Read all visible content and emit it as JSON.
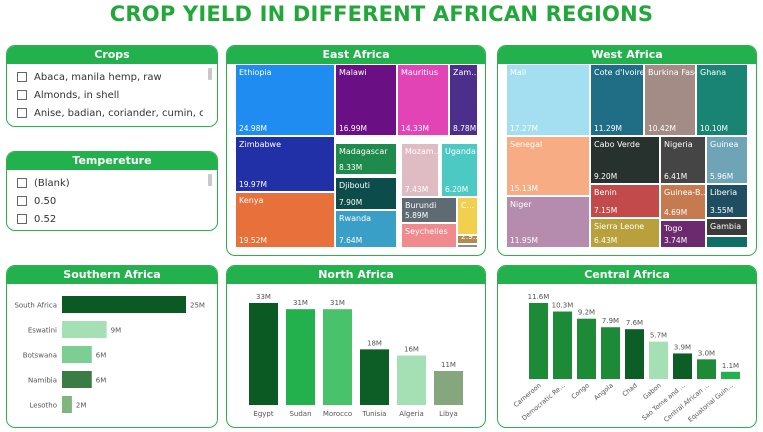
{
  "page": {
    "title": "CROP YIELD IN DIFFERENT AFRICAN REGIONS"
  },
  "colors": {
    "accent": "#22b14c",
    "title": "#22a83a"
  },
  "crops_slicer": {
    "title": "Crops",
    "items": [
      "Abaca, manila hemp, raw",
      "Almonds, in shell",
      "Anise, badian, coriander, cumin, caraway,..."
    ]
  },
  "temp_slicer": {
    "title": "Tempereture",
    "items": [
      "(Blank)",
      "0.50",
      "0.52"
    ]
  },
  "east_africa": {
    "title": "East Africa",
    "cells": [
      {
        "name": "Ethiopia",
        "value": "24.98M",
        "color": "#1f8cf2"
      },
      {
        "name": "Malawi",
        "value": "16.99M",
        "color": "#6b0f84"
      },
      {
        "name": "Mauritius",
        "value": "14.33M",
        "color": "#e244b5"
      },
      {
        "name": "Zam...",
        "value": "8.78M",
        "color": "#4b2f8a"
      },
      {
        "name": "Zimbabwe",
        "value": "19.97M",
        "color": "#2230a8"
      },
      {
        "name": "Madagascar",
        "value": "8.33M",
        "color": "#1e8a4c"
      },
      {
        "name": "Mozam...",
        "value": "7.43M",
        "color": "#dfbcc4"
      },
      {
        "name": "Uganda",
        "value": "6.20M",
        "color": "#4dc9c3"
      },
      {
        "name": "Kenya",
        "value": "19.52M",
        "color": "#e8703a"
      },
      {
        "name": "Djibouti",
        "value": "7.90M",
        "color": "#0c4c4a"
      },
      {
        "name": "Burundi",
        "value": "5.89M",
        "color": "#5f6b73"
      },
      {
        "name": "C...",
        "value": "",
        "color": "#f2cf4e"
      },
      {
        "name": "Rwanda",
        "value": "7.64M",
        "color": "#3a9fc7"
      },
      {
        "name": "Seychelles",
        "value": "",
        "color": "#f08a8c"
      },
      {
        "name": "",
        "value": "2.9...",
        "color": "#b08d4e"
      },
      {
        "name": "",
        "value": "",
        "color": "#8d8d8d"
      }
    ]
  },
  "west_africa": {
    "title": "West Africa",
    "cells": [
      {
        "name": "Mali",
        "value": "17.27M",
        "color": "#a3dff0"
      },
      {
        "name": "Cote d'Ivoire",
        "value": "11.29M",
        "color": "#1f6e86"
      },
      {
        "name": "Burkina Faso",
        "value": "10.42M",
        "color": "#a38c86"
      },
      {
        "name": "Ghana",
        "value": "10.10M",
        "color": "#198473"
      },
      {
        "name": "Senegal",
        "value": "15.13M",
        "color": "#f7ac84"
      },
      {
        "name": "Cabo Verde",
        "value": "9.20M",
        "color": "#27322f"
      },
      {
        "name": "Nigeria",
        "value": "6.41M",
        "color": "#454545"
      },
      {
        "name": "Guinea",
        "value": "5.96M",
        "color": "#6fa4b7"
      },
      {
        "name": "Niger",
        "value": "11.95M",
        "color": "#b58cad"
      },
      {
        "name": "Benin",
        "value": "7.15M",
        "color": "#c24a4a"
      },
      {
        "name": "Guinea-B...",
        "value": "4.69M",
        "color": "#c57b4f"
      },
      {
        "name": "Liberia",
        "value": "3.55M",
        "color": "#1e4e60"
      },
      {
        "name": "Sierra Leone",
        "value": "6.43M",
        "color": "#b8a13c"
      },
      {
        "name": "Togo",
        "value": "3.74M",
        "color": "#6a2a6d"
      },
      {
        "name": "Gambia",
        "value": "",
        "color": "#3b3b3b"
      },
      {
        "name": "",
        "value": "",
        "color": "#0f6e66"
      }
    ]
  },
  "southern_africa": {
    "title": "Southern Africa",
    "chart_data": {
      "type": "bar",
      "orientation": "horizontal",
      "categories": [
        "South Africa",
        "Eswatini",
        "Botswana",
        "Namibia",
        "Lesotho"
      ],
      "values": [
        25,
        9,
        6,
        6,
        2
      ],
      "labels": [
        "25M",
        "9M",
        "6M",
        "6M",
        "2M"
      ],
      "colors": [
        "#0b5a24",
        "#a4e0b4",
        "#7ccf92",
        "#3a7d44",
        "#7fb57f"
      ]
    }
  },
  "north_africa": {
    "title": "North Africa",
    "chart_data": {
      "type": "bar",
      "categories": [
        "Egypt",
        "Sudan",
        "Morocco",
        "Tunisia",
        "Algeria",
        "Libya"
      ],
      "values": [
        33,
        31,
        31,
        18,
        16,
        11
      ],
      "labels": [
        "33M",
        "31M",
        "31M",
        "18M",
        "16M",
        "11M"
      ],
      "colors": [
        "#0b5a24",
        "#23b14d",
        "#48c26b",
        "#0d5e26",
        "#a4e0b4",
        "#86a77e"
      ]
    }
  },
  "central_africa": {
    "title": "Central Africa",
    "chart_data": {
      "type": "bar",
      "categories": [
        "Cameroon",
        "Democratic Re...",
        "Congo",
        "Angola",
        "Chad",
        "Gabon",
        "Sao Tome and ...",
        "Central African ...",
        "Equatorial Guin..."
      ],
      "values": [
        11.6,
        10.3,
        9.2,
        7.9,
        7.6,
        5.7,
        3.9,
        3.0,
        1.1
      ],
      "labels": [
        "11.6M",
        "10.3M",
        "9.2M",
        "7.9M",
        "7.6M",
        "5.7M",
        "3.9M",
        "3.0M",
        "1.1M"
      ],
      "colors": [
        "#1c8a36",
        "#1c8a36",
        "#1c8a36",
        "#1c8a36",
        "#0d5e26",
        "#a4e0b4",
        "#0d5e26",
        "#1c8a36",
        "#23b14d"
      ]
    }
  }
}
